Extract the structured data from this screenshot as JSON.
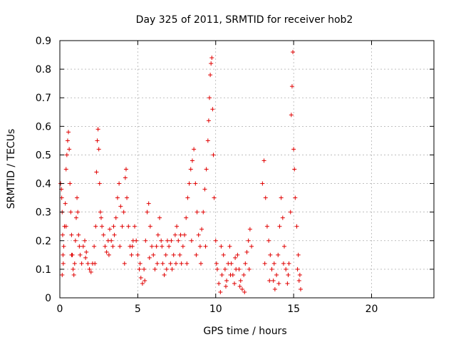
{
  "chart_data": {
    "type": "scatter",
    "title": "Day 325 of 2011, SRMTID for receiver hob2",
    "xlabel": "GPS time / hours",
    "ylabel": "SRMTID / TECUs",
    "xlim": [
      0,
      24
    ],
    "ylim": [
      0,
      0.9
    ],
    "grid": true,
    "marker": "+",
    "color": "#e00000",
    "xticks": [
      0,
      5,
      10,
      15,
      20
    ],
    "xtick_labels": [
      "0",
      "5",
      "10",
      "15",
      "20"
    ],
    "yticks": [
      0,
      0.1,
      0.2,
      0.3,
      0.4,
      0.5,
      0.6,
      0.7,
      0.8,
      0.9
    ],
    "ytick_labels": [
      "0",
      "0.1",
      "0.2",
      "0.3",
      "0.4",
      "0.5",
      "0.6",
      "0.7",
      "0.8",
      "0.9"
    ],
    "series": [
      {
        "name": "hob2",
        "points": [
          [
            0.05,
            0.4
          ],
          [
            0.1,
            0.38
          ],
          [
            0.12,
            0.35
          ],
          [
            0.15,
            0.3
          ],
          [
            0.18,
            0.22
          ],
          [
            0.2,
            0.15
          ],
          [
            0.22,
            0.12
          ],
          [
            0.25,
            0.18
          ],
          [
            0.3,
            0.25
          ],
          [
            0.35,
            0.33
          ],
          [
            0.4,
            0.45
          ],
          [
            0.45,
            0.5
          ],
          [
            0.5,
            0.55
          ],
          [
            0.55,
            0.58
          ],
          [
            0.6,
            0.52
          ],
          [
            0.65,
            0.4
          ],
          [
            0.7,
            0.3
          ],
          [
            0.75,
            0.22
          ],
          [
            0.8,
            0.15
          ],
          [
            0.85,
            0.1
          ],
          [
            0.9,
            0.08
          ],
          [
            0.95,
            0.12
          ],
          [
            1.0,
            0.2
          ],
          [
            1.05,
            0.28
          ],
          [
            1.1,
            0.35
          ],
          [
            1.15,
            0.3
          ],
          [
            1.2,
            0.22
          ],
          [
            1.3,
            0.15
          ],
          [
            1.4,
            0.12
          ],
          [
            1.5,
            0.18
          ],
          [
            1.6,
            0.2
          ],
          [
            1.7,
            0.16
          ],
          [
            1.8,
            0.12
          ],
          [
            1.9,
            0.1
          ],
          [
            2.0,
            0.09
          ],
          [
            2.1,
            0.12
          ],
          [
            2.2,
            0.18
          ],
          [
            2.3,
            0.25
          ],
          [
            2.35,
            0.44
          ],
          [
            2.4,
            0.55
          ],
          [
            2.45,
            0.59
          ],
          [
            2.5,
            0.52
          ],
          [
            2.55,
            0.4
          ],
          [
            2.6,
            0.3
          ],
          [
            2.7,
            0.25
          ],
          [
            2.8,
            0.22
          ],
          [
            2.9,
            0.18
          ],
          [
            3.0,
            0.16
          ],
          [
            3.1,
            0.2
          ],
          [
            3.2,
            0.24
          ],
          [
            3.3,
            0.2
          ],
          [
            3.4,
            0.18
          ],
          [
            3.5,
            0.22
          ],
          [
            3.6,
            0.28
          ],
          [
            3.7,
            0.35
          ],
          [
            3.8,
            0.4
          ],
          [
            3.9,
            0.32
          ],
          [
            4.0,
            0.25
          ],
          [
            4.1,
            0.3
          ],
          [
            4.2,
            0.42
          ],
          [
            4.25,
            0.45
          ],
          [
            4.3,
            0.35
          ],
          [
            4.4,
            0.25
          ],
          [
            4.5,
            0.18
          ],
          [
            4.6,
            0.15
          ],
          [
            4.7,
            0.2
          ],
          [
            4.8,
            0.25
          ],
          [
            4.9,
            0.2
          ],
          [
            5.0,
            0.15
          ],
          [
            5.1,
            0.1
          ],
          [
            5.2,
            0.07
          ],
          [
            5.3,
            0.05
          ],
          [
            5.4,
            0.1
          ],
          [
            5.5,
            0.2
          ],
          [
            5.6,
            0.3
          ],
          [
            5.7,
            0.33
          ],
          [
            5.8,
            0.25
          ],
          [
            5.9,
            0.18
          ],
          [
            6.0,
            0.15
          ],
          [
            6.1,
            0.1
          ],
          [
            6.2,
            0.18
          ],
          [
            6.3,
            0.22
          ],
          [
            6.4,
            0.28
          ],
          [
            6.5,
            0.2
          ],
          [
            6.6,
            0.12
          ],
          [
            6.7,
            0.08
          ],
          [
            6.8,
            0.15
          ],
          [
            6.9,
            0.2
          ],
          [
            7.0,
            0.18
          ],
          [
            7.1,
            0.12
          ],
          [
            7.2,
            0.1
          ],
          [
            7.3,
            0.15
          ],
          [
            7.4,
            0.22
          ],
          [
            7.5,
            0.25
          ],
          [
            7.6,
            0.2
          ],
          [
            7.7,
            0.15
          ],
          [
            7.8,
            0.12
          ],
          [
            7.9,
            0.18
          ],
          [
            8.0,
            0.22
          ],
          [
            8.1,
            0.28
          ],
          [
            8.2,
            0.35
          ],
          [
            8.3,
            0.4
          ],
          [
            8.4,
            0.45
          ],
          [
            8.5,
            0.48
          ],
          [
            8.6,
            0.52
          ],
          [
            8.7,
            0.4
          ],
          [
            8.8,
            0.3
          ],
          [
            8.9,
            0.22
          ],
          [
            9.0,
            0.18
          ],
          [
            9.1,
            0.24
          ],
          [
            9.2,
            0.3
          ],
          [
            9.3,
            0.38
          ],
          [
            9.4,
            0.45
          ],
          [
            9.5,
            0.55
          ],
          [
            9.55,
            0.62
          ],
          [
            9.6,
            0.7
          ],
          [
            9.65,
            0.78
          ],
          [
            9.7,
            0.82
          ],
          [
            9.75,
            0.84
          ],
          [
            9.8,
            0.66
          ],
          [
            9.85,
            0.5
          ],
          [
            9.9,
            0.35
          ],
          [
            10.0,
            0.2
          ],
          [
            10.1,
            0.1
          ],
          [
            10.2,
            0.05
          ],
          [
            10.3,
            0.02
          ],
          [
            10.4,
            0.08
          ],
          [
            10.5,
            0.15
          ],
          [
            10.6,
            0.1
          ],
          [
            10.7,
            0.06
          ],
          [
            10.8,
            0.12
          ],
          [
            10.9,
            0.18
          ],
          [
            11.0,
            0.12
          ],
          [
            11.1,
            0.08
          ],
          [
            11.2,
            0.05
          ],
          [
            11.3,
            0.1
          ],
          [
            11.4,
            0.15
          ],
          [
            11.5,
            0.1
          ],
          [
            11.6,
            0.06
          ],
          [
            11.7,
            0.03
          ],
          [
            11.8,
            0.08
          ],
          [
            11.9,
            0.12
          ],
          [
            12.0,
            0.16
          ],
          [
            12.1,
            0.2
          ],
          [
            12.2,
            0.24
          ],
          [
            12.3,
            0.18
          ],
          [
            13.0,
            0.4
          ],
          [
            13.1,
            0.48
          ],
          [
            13.2,
            0.35
          ],
          [
            13.3,
            0.25
          ],
          [
            13.4,
            0.2
          ],
          [
            13.5,
            0.15
          ],
          [
            13.6,
            0.1
          ],
          [
            13.7,
            0.06
          ],
          [
            13.8,
            0.03
          ],
          [
            13.9,
            0.08
          ],
          [
            14.0,
            0.15
          ],
          [
            14.1,
            0.25
          ],
          [
            14.2,
            0.35
          ],
          [
            14.3,
            0.28
          ],
          [
            14.4,
            0.18
          ],
          [
            14.5,
            0.1
          ],
          [
            14.6,
            0.05
          ],
          [
            14.7,
            0.12
          ],
          [
            14.8,
            0.3
          ],
          [
            14.85,
            0.64
          ],
          [
            14.9,
            0.74
          ],
          [
            14.95,
            0.86
          ],
          [
            15.0,
            0.52
          ],
          [
            15.05,
            0.45
          ],
          [
            15.1,
            0.35
          ],
          [
            15.2,
            0.25
          ],
          [
            15.3,
            0.15
          ],
          [
            15.4,
            0.08
          ],
          [
            15.45,
            0.03
          ],
          [
            0.15,
            0.08
          ],
          [
            0.4,
            0.25
          ],
          [
            0.75,
            0.15
          ],
          [
            1.25,
            0.18
          ],
          [
            1.65,
            0.14
          ],
          [
            2.25,
            0.12
          ],
          [
            2.65,
            0.28
          ],
          [
            3.15,
            0.15
          ],
          [
            3.45,
            0.25
          ],
          [
            3.85,
            0.18
          ],
          [
            4.15,
            0.12
          ],
          [
            4.65,
            0.18
          ],
          [
            5.15,
            0.12
          ],
          [
            5.45,
            0.06
          ],
          [
            5.75,
            0.14
          ],
          [
            6.25,
            0.12
          ],
          [
            6.55,
            0.18
          ],
          [
            6.85,
            0.1
          ],
          [
            7.15,
            0.2
          ],
          [
            7.45,
            0.12
          ],
          [
            7.75,
            0.22
          ],
          [
            8.15,
            0.12
          ],
          [
            8.45,
            0.2
          ],
          [
            8.75,
            0.15
          ],
          [
            9.05,
            0.12
          ],
          [
            9.35,
            0.18
          ],
          [
            10.05,
            0.12
          ],
          [
            10.35,
            0.18
          ],
          [
            10.65,
            0.04
          ],
          [
            10.95,
            0.08
          ],
          [
            11.25,
            0.14
          ],
          [
            11.55,
            0.04
          ],
          [
            11.85,
            0.02
          ],
          [
            12.15,
            0.1
          ],
          [
            13.15,
            0.12
          ],
          [
            13.45,
            0.06
          ],
          [
            13.75,
            0.12
          ],
          [
            14.05,
            0.05
          ],
          [
            14.35,
            0.12
          ],
          [
            14.65,
            0.08
          ],
          [
            15.25,
            0.1
          ],
          [
            15.35,
            0.06
          ]
        ]
      }
    ]
  }
}
